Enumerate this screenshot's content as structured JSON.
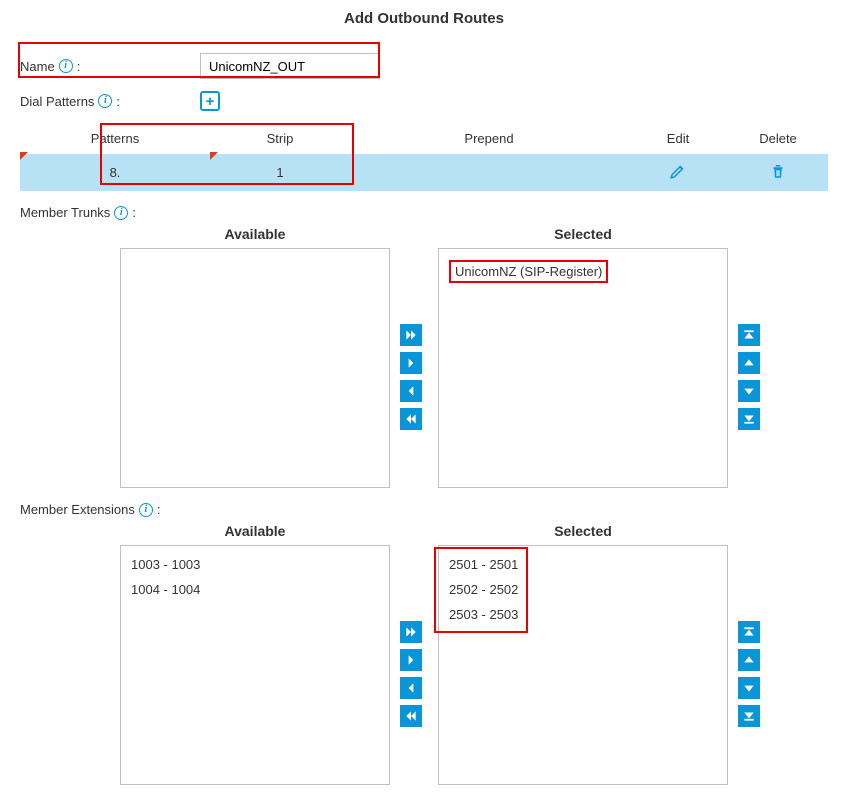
{
  "title": "Add Outbound Routes",
  "name_field": {
    "label": "Name",
    "value": "UnicomNZ_OUT"
  },
  "dial_patterns": {
    "label": "Dial Patterns",
    "columns": {
      "patterns": "Patterns",
      "strip": "Strip",
      "prepend": "Prepend",
      "edit": "Edit",
      "delete": "Delete"
    },
    "rows": [
      {
        "pattern": "8.",
        "strip": "1",
        "prepend": ""
      }
    ]
  },
  "member_trunks": {
    "label": "Member Trunks",
    "available_label": "Available",
    "selected_label": "Selected",
    "available": [],
    "selected": [
      "UnicomNZ (SIP-Register)"
    ]
  },
  "member_extensions": {
    "label": "Member Extensions",
    "available_label": "Available",
    "selected_label": "Selected",
    "available": [
      "1003 - 1003",
      "1004 - 1004"
    ],
    "selected": [
      "2501 - 2501",
      "2502 - 2502",
      "2503 - 2503"
    ]
  },
  "colors": {
    "accent": "#0a96d6",
    "row_bg": "#b7e1f4",
    "highlight": "#e60000"
  }
}
